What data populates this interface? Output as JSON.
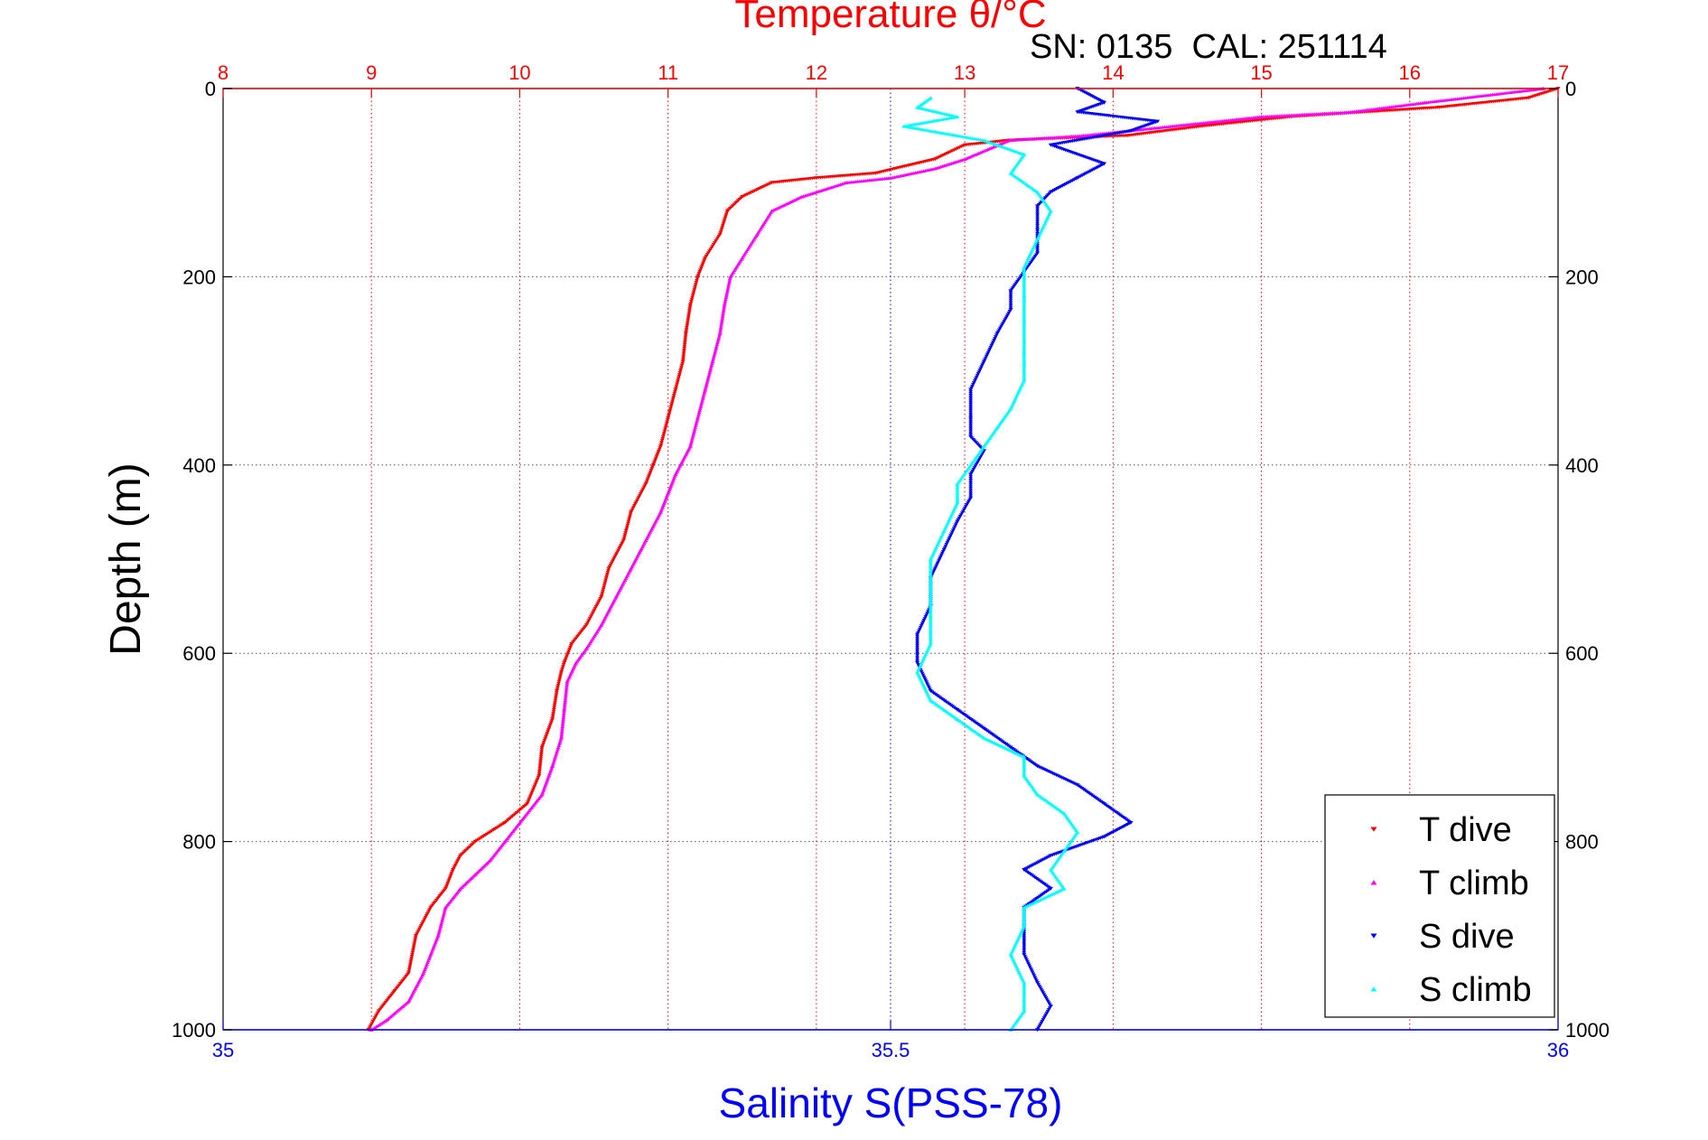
{
  "chart_data": {
    "type": "scatter",
    "title": "",
    "top_axis_label": "Temperature θ/°C",
    "top_axis_color": "#ff0000",
    "bottom_axis_label": "Salinity S(PSS-78)",
    "bottom_axis_color": "#0000ff",
    "ylabel": "Depth (m)",
    "annotation": "SN: 0135  CAL: 251114",
    "temperature_axis": {
      "range": [
        8,
        17
      ],
      "ticks": [
        "8",
        "9",
        "10",
        "11",
        "12",
        "13",
        "14",
        "15",
        "16",
        "17"
      ]
    },
    "salinity_axis": {
      "range": [
        35,
        36
      ],
      "ticks": [
        "35",
        "35.5",
        "36"
      ]
    },
    "depth_axis": {
      "range": [
        0,
        1000
      ],
      "reversed": true,
      "ticks": [
        "0",
        "200",
        "400",
        "600",
        "800",
        "1000"
      ]
    },
    "grid": true,
    "legend_position": "bottom-right",
    "series": [
      {
        "name": "T dive",
        "axis": "temperature",
        "color": "#ff0000",
        "marker": "triangle-down",
        "points": [
          [
            17.0,
            0
          ],
          [
            16.8,
            10
          ],
          [
            16.2,
            20
          ],
          [
            15.2,
            30
          ],
          [
            14.6,
            40
          ],
          [
            14.1,
            50
          ],
          [
            13.3,
            55
          ],
          [
            13.0,
            60
          ],
          [
            12.8,
            75
          ],
          [
            12.4,
            90
          ],
          [
            12.0,
            95
          ],
          [
            11.7,
            100
          ],
          [
            11.5,
            115
          ],
          [
            11.4,
            130
          ],
          [
            11.35,
            155
          ],
          [
            11.25,
            180
          ],
          [
            11.2,
            200
          ],
          [
            11.15,
            230
          ],
          [
            11.12,
            260
          ],
          [
            11.1,
            290
          ],
          [
            11.05,
            320
          ],
          [
            11.0,
            350
          ],
          [
            10.95,
            380
          ],
          [
            10.9,
            400
          ],
          [
            10.85,
            420
          ],
          [
            10.75,
            450
          ],
          [
            10.7,
            480
          ],
          [
            10.6,
            510
          ],
          [
            10.55,
            540
          ],
          [
            10.45,
            570
          ],
          [
            10.35,
            590
          ],
          [
            10.3,
            610
          ],
          [
            10.28,
            620
          ],
          [
            10.25,
            640
          ],
          [
            10.22,
            670
          ],
          [
            10.15,
            700
          ],
          [
            10.13,
            730
          ],
          [
            10.05,
            760
          ],
          [
            9.9,
            780
          ],
          [
            9.7,
            800
          ],
          [
            9.6,
            815
          ],
          [
            9.55,
            830
          ],
          [
            9.5,
            850
          ],
          [
            9.4,
            870
          ],
          [
            9.3,
            900
          ],
          [
            9.25,
            940
          ],
          [
            9.15,
            960
          ],
          [
            9.05,
            980
          ],
          [
            8.98,
            1000
          ]
        ]
      },
      {
        "name": "T climb",
        "axis": "temperature",
        "color": "#ff00ff",
        "marker": "triangle-up",
        "points": [
          [
            16.9,
            0
          ],
          [
            16.1,
            15
          ],
          [
            15.6,
            25
          ],
          [
            15.0,
            30
          ],
          [
            14.4,
            40
          ],
          [
            13.8,
            50
          ],
          [
            13.3,
            55
          ],
          [
            13.0,
            75
          ],
          [
            12.8,
            85
          ],
          [
            12.5,
            95
          ],
          [
            12.2,
            100
          ],
          [
            11.9,
            115
          ],
          [
            11.7,
            130
          ],
          [
            11.6,
            155
          ],
          [
            11.5,
            180
          ],
          [
            11.42,
            200
          ],
          [
            11.38,
            230
          ],
          [
            11.35,
            260
          ],
          [
            11.3,
            290
          ],
          [
            11.25,
            320
          ],
          [
            11.2,
            350
          ],
          [
            11.15,
            380
          ],
          [
            11.05,
            410
          ],
          [
            11.0,
            430
          ],
          [
            10.95,
            450
          ],
          [
            10.85,
            480
          ],
          [
            10.75,
            510
          ],
          [
            10.65,
            540
          ],
          [
            10.55,
            570
          ],
          [
            10.45,
            595
          ],
          [
            10.38,
            610
          ],
          [
            10.32,
            630
          ],
          [
            10.3,
            660
          ],
          [
            10.28,
            690
          ],
          [
            10.22,
            720
          ],
          [
            10.15,
            750
          ],
          [
            10.0,
            780
          ],
          [
            9.9,
            800
          ],
          [
            9.8,
            820
          ],
          [
            9.7,
            835
          ],
          [
            9.6,
            850
          ],
          [
            9.5,
            870
          ],
          [
            9.45,
            900
          ],
          [
            9.35,
            940
          ],
          [
            9.25,
            970
          ],
          [
            9.1,
            990
          ],
          [
            9.0,
            1000
          ]
        ]
      },
      {
        "name": "S dive",
        "axis": "salinity",
        "color": "#0000ff",
        "marker": "triangle-down",
        "points": [
          [
            35.64,
            0
          ],
          [
            35.66,
            15
          ],
          [
            35.64,
            25
          ],
          [
            35.7,
            35
          ],
          [
            35.68,
            45
          ],
          [
            35.62,
            60
          ],
          [
            35.66,
            80
          ],
          [
            35.64,
            95
          ],
          [
            35.62,
            110
          ],
          [
            35.61,
            125
          ],
          [
            35.61,
            150
          ],
          [
            35.61,
            175
          ],
          [
            35.6,
            195
          ],
          [
            35.59,
            215
          ],
          [
            35.59,
            235
          ],
          [
            35.58,
            260
          ],
          [
            35.57,
            290
          ],
          [
            35.56,
            320
          ],
          [
            35.56,
            350
          ],
          [
            35.56,
            370
          ],
          [
            35.57,
            385
          ],
          [
            35.56,
            410
          ],
          [
            35.56,
            435
          ],
          [
            35.55,
            460
          ],
          [
            35.54,
            490
          ],
          [
            35.53,
            520
          ],
          [
            35.53,
            550
          ],
          [
            35.52,
            580
          ],
          [
            35.52,
            610
          ],
          [
            35.53,
            640
          ],
          [
            35.55,
            660
          ],
          [
            35.57,
            680
          ],
          [
            35.59,
            700
          ],
          [
            35.61,
            720
          ],
          [
            35.64,
            740
          ],
          [
            35.66,
            760
          ],
          [
            35.68,
            780
          ],
          [
            35.66,
            795
          ],
          [
            35.62,
            815
          ],
          [
            35.6,
            830
          ],
          [
            35.62,
            850
          ],
          [
            35.6,
            870
          ],
          [
            35.6,
            890
          ],
          [
            35.6,
            920
          ],
          [
            35.61,
            950
          ],
          [
            35.62,
            975
          ],
          [
            35.61,
            1000
          ]
        ]
      },
      {
        "name": "S climb",
        "axis": "salinity",
        "color": "#00ffff",
        "marker": "triangle-up",
        "points": [
          [
            35.53,
            10
          ],
          [
            35.52,
            20
          ],
          [
            35.55,
            30
          ],
          [
            35.51,
            40
          ],
          [
            35.57,
            55
          ],
          [
            35.6,
            70
          ],
          [
            35.59,
            90
          ],
          [
            35.61,
            110
          ],
          [
            35.62,
            130
          ],
          [
            35.61,
            160
          ],
          [
            35.6,
            190
          ],
          [
            35.6,
            220
          ],
          [
            35.6,
            250
          ],
          [
            35.6,
            280
          ],
          [
            35.6,
            310
          ],
          [
            35.59,
            340
          ],
          [
            35.58,
            360
          ],
          [
            35.57,
            380
          ],
          [
            35.56,
            400
          ],
          [
            35.55,
            420
          ],
          [
            35.55,
            440
          ],
          [
            35.54,
            470
          ],
          [
            35.53,
            500
          ],
          [
            35.53,
            530
          ],
          [
            35.53,
            560
          ],
          [
            35.53,
            590
          ],
          [
            35.52,
            620
          ],
          [
            35.53,
            650
          ],
          [
            35.55,
            670
          ],
          [
            35.57,
            690
          ],
          [
            35.6,
            710
          ],
          [
            35.6,
            730
          ],
          [
            35.61,
            750
          ],
          [
            35.63,
            770
          ],
          [
            35.64,
            790
          ],
          [
            35.63,
            810
          ],
          [
            35.62,
            830
          ],
          [
            35.63,
            850
          ],
          [
            35.6,
            870
          ],
          [
            35.6,
            890
          ],
          [
            35.59,
            920
          ],
          [
            35.6,
            950
          ],
          [
            35.6,
            980
          ],
          [
            35.59,
            1000
          ]
        ]
      }
    ]
  }
}
